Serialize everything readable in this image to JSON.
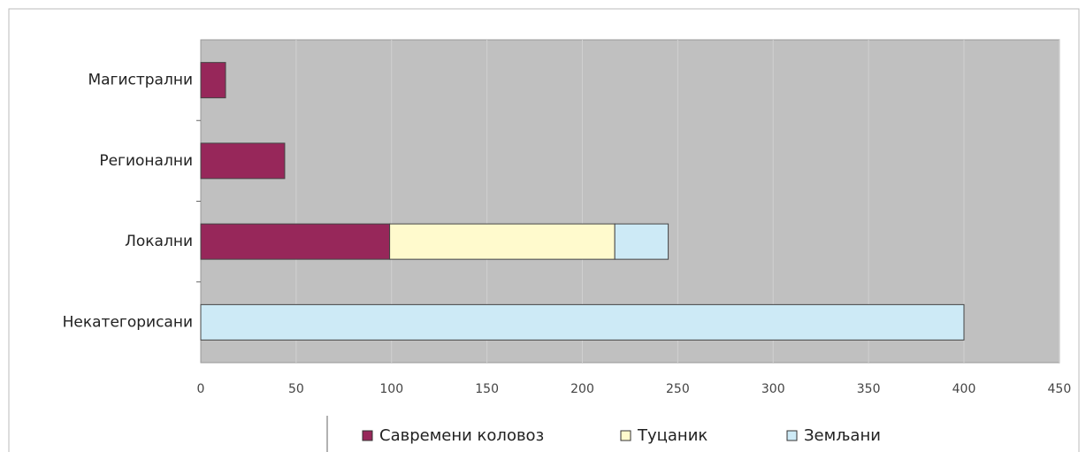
{
  "chart_data": {
    "type": "stacked_barh",
    "categories": [
      "Магистрални",
      "Регионални",
      "Локални",
      "Некатегорисани"
    ],
    "series": [
      {
        "name": "Савремени коловоз",
        "color": "#97275a",
        "values": [
          13,
          44,
          99,
          0
        ]
      },
      {
        "name": "Туцаник",
        "color": "#fffacd",
        "values": [
          0,
          0,
          118,
          0
        ]
      },
      {
        "name": "Земљани",
        "color": "#cdeaf6",
        "values": [
          0,
          0,
          28,
          400
        ]
      }
    ],
    "xlim": [
      0,
      450
    ],
    "xticks": [
      0,
      50,
      100,
      150,
      200,
      250,
      300,
      350,
      400,
      450
    ],
    "grid": true,
    "legend": "bottom"
  }
}
